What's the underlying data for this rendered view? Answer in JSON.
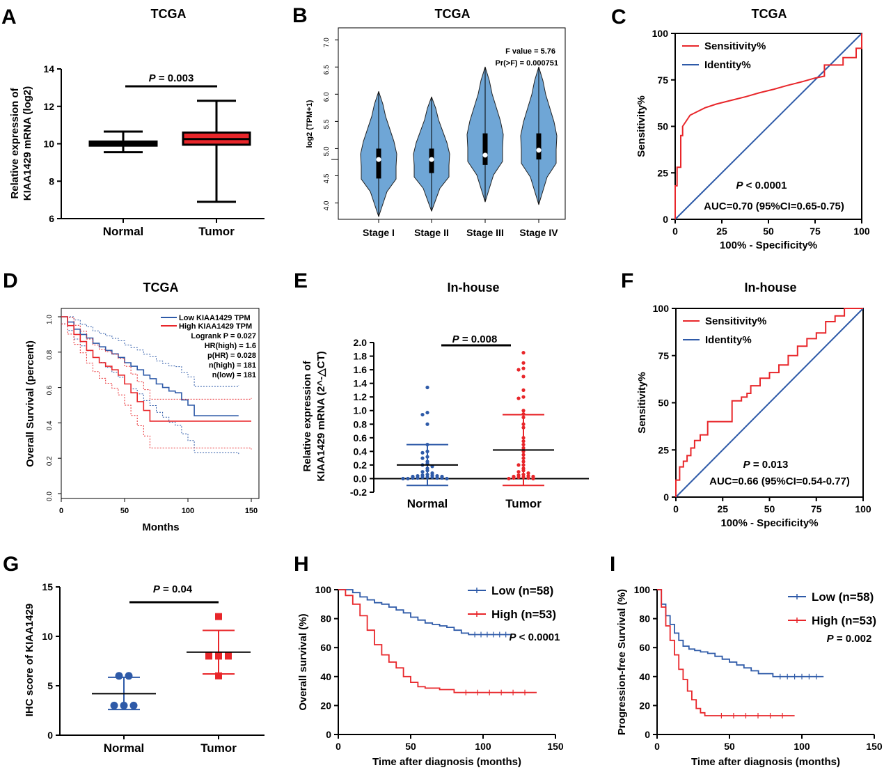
{
  "colors": {
    "red": "#e8262a",
    "blue": "#2e5aa8",
    "violet": "#6fa6d6",
    "black": "#000000"
  },
  "panels": {
    "A": {
      "label": "A",
      "title": "TCGA"
    },
    "B": {
      "label": "B",
      "title": "TCGA"
    },
    "C": {
      "label": "C",
      "title": "TCGA"
    },
    "D": {
      "label": "D",
      "title": "TCGA"
    },
    "E": {
      "label": "E",
      "title": "In-house"
    },
    "F": {
      "label": "F",
      "title": "In-house"
    },
    "G": {
      "label": "G",
      "title": ""
    },
    "H": {
      "label": "H",
      "title": ""
    },
    "I": {
      "label": "I",
      "title": ""
    }
  },
  "chart_data": [
    {
      "panel": "A",
      "type": "box",
      "ylabel": [
        "Relative expression of",
        "KIAA1429 mRNA (log2)"
      ],
      "ylim": [
        6,
        14
      ],
      "yticks": [
        6,
        8,
        10,
        12,
        14
      ],
      "categories": [
        "Normal",
        "Tumor"
      ],
      "boxes": [
        {
          "name": "Normal",
          "min": 9.55,
          "q1": 9.9,
          "median": 10.0,
          "q3": 10.12,
          "max": 10.65,
          "fill": "#000000"
        },
        {
          "name": "Tumor",
          "min": 6.9,
          "q1": 9.95,
          "median": 10.25,
          "q3": 10.6,
          "max": 12.3,
          "fill": "#e8262a"
        }
      ],
      "annotation": {
        "p_prefix": "P",
        "p_text": " = 0.003"
      }
    },
    {
      "panel": "B",
      "type": "violin",
      "ylabel": "log2 (TPM+1)",
      "ylim": [
        3.8,
        7.2
      ],
      "yticks": [
        4.0,
        4.5,
        5.0,
        5.5,
        6.0,
        6.5,
        7.0
      ],
      "categories": [
        "Stage I",
        "Stage II",
        "Stage III",
        "Stage IV"
      ],
      "violins": [
        {
          "name": "Stage I",
          "min": 3.75,
          "max": 6.05,
          "median": 4.8,
          "q1": 4.45,
          "q3": 5.0
        },
        {
          "name": "Stage II",
          "min": 3.85,
          "max": 5.95,
          "median": 4.8,
          "q1": 4.55,
          "q3": 5.0
        },
        {
          "name": "Stage III",
          "min": 4.02,
          "max": 6.5,
          "median": 4.88,
          "q1": 4.7,
          "q3": 5.28
        },
        {
          "name": "Stage IV",
          "min": 3.97,
          "max": 6.5,
          "median": 4.97,
          "q1": 4.8,
          "q3": 5.28
        }
      ],
      "annotation": [
        "F value = 5.76",
        "Pr(>F) = 0.000751"
      ]
    },
    {
      "panel": "C",
      "type": "line",
      "xlabel": "100% - Specificity%",
      "ylabel": "Sensitivity%",
      "xlim": [
        0,
        100
      ],
      "ylim": [
        0,
        100
      ],
      "ticks": [
        0,
        25,
        50,
        75,
        100
      ],
      "series": [
        {
          "name": "Sensitivity%",
          "color": "#e8262a",
          "x": [
            0,
            0,
            1,
            1,
            3,
            3,
            4,
            4,
            6,
            8,
            12,
            16,
            22,
            30,
            38,
            45,
            53,
            60,
            68,
            75,
            80,
            80,
            90,
            90,
            97,
            97,
            100,
            100
          ],
          "y": [
            0,
            18,
            18,
            28,
            28,
            45,
            45,
            50,
            53,
            56,
            58,
            60,
            62,
            64,
            66,
            68,
            70,
            72,
            74,
            76,
            77,
            83,
            83,
            87,
            87,
            92,
            92,
            100
          ]
        },
        {
          "name": "Identity%",
          "color": "#2e5aa8",
          "x": [
            0,
            100
          ],
          "y": [
            0,
            100
          ]
        }
      ],
      "annotation": {
        "p_prefix": "P",
        "p_text": " < 0.0001",
        "auc": "AUC=0.70 (95%CI=0.65-0.75)"
      }
    },
    {
      "panel": "D",
      "type": "line",
      "xlabel": "Months",
      "ylabel": "Overall Survival (percent)",
      "xlim": [
        0,
        150
      ],
      "xticks": [
        0,
        50,
        100,
        150
      ],
      "ylim": [
        0,
        1.0
      ],
      "yticks": [
        0.0,
        0.2,
        0.4,
        0.6,
        0.8,
        1.0
      ],
      "series": [
        {
          "name": "Low KIAA1429 TPM",
          "color": "#2e5aa8",
          "x": [
            0,
            5,
            10,
            15,
            20,
            25,
            30,
            35,
            40,
            45,
            50,
            55,
            60,
            65,
            70,
            75,
            80,
            85,
            90,
            95,
            100,
            105,
            140
          ],
          "y": [
            1.0,
            0.97,
            0.93,
            0.9,
            0.88,
            0.85,
            0.83,
            0.81,
            0.79,
            0.77,
            0.74,
            0.72,
            0.7,
            0.67,
            0.65,
            0.62,
            0.6,
            0.58,
            0.57,
            0.53,
            0.5,
            0.44,
            0.44
          ]
        },
        {
          "name": "High KIAA1429 TPM",
          "color": "#e8262a",
          "x": [
            0,
            5,
            10,
            15,
            20,
            25,
            30,
            35,
            40,
            45,
            50,
            55,
            60,
            65,
            70,
            150
          ],
          "y": [
            1.0,
            0.95,
            0.9,
            0.86,
            0.81,
            0.77,
            0.74,
            0.72,
            0.7,
            0.67,
            0.62,
            0.57,
            0.52,
            0.47,
            0.41,
            0.41
          ]
        }
      ],
      "legend_stats": [
        "Logrank P = 0.027",
        "HR(high) = 1.6",
        "p(HR) = 0.028",
        "n(high) = 181",
        "n(low) = 181"
      ]
    },
    {
      "panel": "E",
      "type": "scatter",
      "ylabel": [
        "Relative expression of",
        "KIAA1429 mRNA  (2^-△CT)"
      ],
      "ylim": [
        -0.2,
        2.0
      ],
      "yticks": [
        -0.2,
        0.0,
        0.2,
        0.4,
        0.6,
        0.8,
        1.0,
        1.2,
        1.4,
        1.6,
        1.8,
        2.0
      ],
      "categories": [
        "Normal",
        "Tumor"
      ],
      "groups": [
        {
          "name": "Normal",
          "color": "#2e5aa8",
          "mean": 0.2,
          "sd_low": -0.1,
          "sd_high": 0.5,
          "points": [
            1.34,
            0.97,
            0.94,
            0.8,
            0.5,
            0.4,
            0.38,
            0.32,
            0.3,
            0.25,
            0.22,
            0.2,
            0.18,
            0.15,
            0.12,
            0.1,
            0.08,
            0.06,
            0.05,
            0.05,
            0.04,
            0.04,
            0.03,
            0.03,
            0.02,
            0.02,
            0.02,
            0.01,
            0.01,
            0.01,
            0.01,
            0.0,
            0.0,
            0.0
          ]
        },
        {
          "name": "Tumor",
          "color": "#e8262a",
          "mean": 0.42,
          "sd_low": -0.1,
          "sd_high": 0.94,
          "points": [
            1.85,
            1.7,
            1.62,
            1.6,
            1.5,
            1.3,
            1.2,
            1.18,
            1.0,
            0.95,
            0.9,
            0.8,
            0.75,
            0.6,
            0.55,
            0.5,
            0.45,
            0.4,
            0.35,
            0.3,
            0.25,
            0.2,
            0.2,
            0.15,
            0.12,
            0.1,
            0.08,
            0.06,
            0.05,
            0.04,
            0.03,
            0.03,
            0.02,
            0.02,
            0.01,
            0.01,
            0.0,
            0.0
          ]
        }
      ],
      "annotation": {
        "p_prefix": "P",
        "p_text": " = 0.008"
      }
    },
    {
      "panel": "F",
      "type": "line",
      "xlabel": "100% - Specificity%",
      "ylabel": "Sensitivity%",
      "xlim": [
        0,
        100
      ],
      "ylim": [
        0,
        100
      ],
      "ticks": [
        0,
        25,
        50,
        75,
        100
      ],
      "series": [
        {
          "name": "Sensitivity%",
          "color": "#e8262a",
          "x": [
            0,
            0,
            2,
            2,
            4,
            4,
            6,
            6,
            8,
            8,
            10,
            10,
            13,
            13,
            17,
            17,
            30,
            30,
            35,
            35,
            38,
            38,
            40,
            40,
            45,
            45,
            50,
            50,
            55,
            55,
            60,
            60,
            65,
            65,
            70,
            70,
            75,
            75,
            80,
            80,
            85,
            85,
            90,
            90,
            100
          ],
          "y": [
            0,
            9,
            9,
            16,
            16,
            19,
            19,
            22,
            22,
            26,
            26,
            30,
            30,
            33,
            33,
            40,
            40,
            51,
            51,
            53,
            53,
            55,
            55,
            59,
            59,
            63,
            63,
            66,
            66,
            70,
            70,
            75,
            75,
            80,
            80,
            84,
            84,
            87,
            87,
            93,
            93,
            96,
            96,
            100,
            100
          ]
        },
        {
          "name": "Identity%",
          "color": "#2e5aa8",
          "x": [
            0,
            100
          ],
          "y": [
            0,
            100
          ]
        }
      ],
      "annotation": {
        "p_prefix": "P",
        "p_text": " = 0.013",
        "auc": "AUC=0.66 (95%CI=0.54-0.77)"
      }
    },
    {
      "panel": "G",
      "type": "scatter",
      "ylabel": "IHC score of KIAA1429",
      "ylim": [
        0,
        15
      ],
      "yticks": [
        0,
        5,
        10,
        15
      ],
      "categories": [
        "Normal",
        "Tumor"
      ],
      "groups": [
        {
          "name": "Normal",
          "color": "#2e5aa8",
          "marker": "circle",
          "mean": 4.2,
          "sd_low": 2.6,
          "sd_high": 5.85,
          "points": [
            6,
            6,
            3,
            3,
            3
          ]
        },
        {
          "name": "Tumor",
          "color": "#e8262a",
          "marker": "square",
          "mean": 8.4,
          "sd_low": 6.2,
          "sd_high": 10.6,
          "points": [
            12,
            8,
            8,
            8,
            6
          ]
        }
      ],
      "annotation": {
        "p_prefix": "P",
        "p_text": " = 0.04"
      }
    },
    {
      "panel": "H",
      "type": "line",
      "xlabel": "Time after diagnosis (months)",
      "ylabel": "Overall survival (%)",
      "xlim": [
        0,
        150
      ],
      "xticks": [
        0,
        50,
        100,
        150
      ],
      "ylim": [
        0,
        100
      ],
      "yticks": [
        0,
        20,
        40,
        60,
        80,
        100
      ],
      "series": [
        {
          "name": "Low (n=58)",
          "color": "#2e5aa8",
          "x": [
            0,
            10,
            15,
            20,
            25,
            30,
            35,
            40,
            45,
            50,
            55,
            60,
            65,
            70,
            75,
            80,
            85,
            90,
            120
          ],
          "y": [
            100,
            98,
            95,
            93,
            91,
            90,
            88,
            86,
            84,
            81,
            79,
            77,
            76,
            75,
            74,
            72,
            70,
            69,
            69
          ]
        },
        {
          "name": "High (n=53)",
          "color": "#e8262a",
          "x": [
            0,
            5,
            10,
            15,
            20,
            25,
            30,
            35,
            40,
            45,
            50,
            55,
            60,
            70,
            80,
            137
          ],
          "y": [
            100,
            96,
            90,
            82,
            72,
            62,
            55,
            50,
            46,
            40,
            36,
            33,
            32,
            31,
            29,
            29
          ]
        }
      ],
      "annotation": {
        "p_prefix": "P",
        "p_text": " < 0.0001"
      }
    },
    {
      "panel": "I",
      "type": "line",
      "xlabel": "Time after diagnosis (months)",
      "ylabel": "Progression-free Survival (%)",
      "xlim": [
        0,
        150
      ],
      "xticks": [
        0,
        50,
        100,
        150
      ],
      "ylim": [
        0,
        100
      ],
      "yticks": [
        0,
        20,
        40,
        60,
        80,
        100
      ],
      "series": [
        {
          "name": "Low (n=58)",
          "color": "#2e5aa8",
          "x": [
            0,
            3,
            6,
            9,
            12,
            15,
            18,
            22,
            26,
            30,
            35,
            40,
            45,
            50,
            55,
            60,
            65,
            70,
            80,
            115
          ],
          "y": [
            100,
            90,
            82,
            76,
            70,
            65,
            61,
            59,
            58,
            57,
            56,
            54,
            52,
            50,
            48,
            46,
            44,
            42,
            40,
            40
          ]
        },
        {
          "name": "High (n=53)",
          "color": "#e8262a",
          "x": [
            0,
            3,
            6,
            9,
            12,
            15,
            18,
            21,
            24,
            27,
            30,
            33,
            36,
            95
          ],
          "y": [
            100,
            88,
            75,
            65,
            55,
            45,
            38,
            30,
            24,
            18,
            15,
            13,
            13,
            13
          ]
        }
      ],
      "annotation": {
        "p_prefix": "P",
        "p_text": " = 0.002"
      }
    }
  ]
}
